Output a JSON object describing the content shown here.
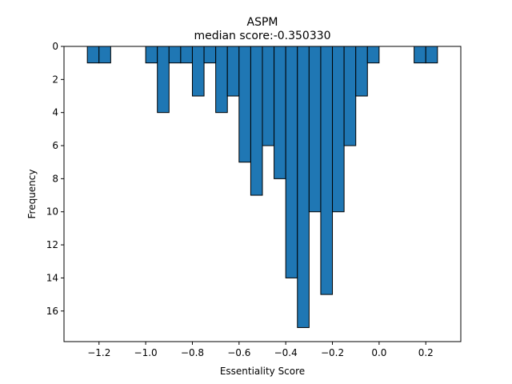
{
  "chart_data": {
    "type": "bar",
    "title": "ASPM",
    "subtitle": "median score:-0.350330",
    "xlabel": "Essentiality Score",
    "ylabel": "Frequency",
    "xlim": [
      -1.35,
      0.35
    ],
    "ylim": [
      0,
      17.85
    ],
    "y_inverted": true,
    "x_axis_position": "bottom",
    "grid": false,
    "bar_color": "#1f77b4",
    "edge_color": "#000000",
    "bin_width": 0.05,
    "bin_left_edges": [
      -1.25,
      -1.2,
      -1.15,
      -1.1,
      -1.05,
      -1.0,
      -0.95,
      -0.9,
      -0.85,
      -0.8,
      -0.75,
      -0.7,
      -0.65,
      -0.6,
      -0.55,
      -0.5,
      -0.45,
      -0.4,
      -0.35,
      -0.3,
      -0.25,
      -0.2,
      -0.15,
      -0.1,
      -0.05,
      0.0,
      0.05,
      0.1,
      0.15,
      0.2
    ],
    "values": [
      1,
      1,
      0,
      0,
      0,
      1,
      4,
      1,
      1,
      3,
      1,
      4,
      3,
      7,
      9,
      6,
      8,
      14,
      17,
      10,
      15,
      10,
      6,
      3,
      1,
      0,
      0,
      0,
      1,
      1
    ],
    "x_ticks": [
      -1.2,
      -1.0,
      -0.8,
      -0.6,
      -0.4,
      -0.2,
      0.0,
      0.2
    ],
    "x_tick_labels": [
      "−1.2",
      "−1.0",
      "−0.8",
      "−0.6",
      "−0.4",
      "−0.2",
      "0.0",
      "0.2"
    ],
    "y_ticks": [
      0,
      2,
      4,
      6,
      8,
      10,
      12,
      14,
      16
    ],
    "y_tick_labels": [
      "0",
      "2",
      "4",
      "6",
      "8",
      "10",
      "12",
      "14",
      "16"
    ]
  }
}
